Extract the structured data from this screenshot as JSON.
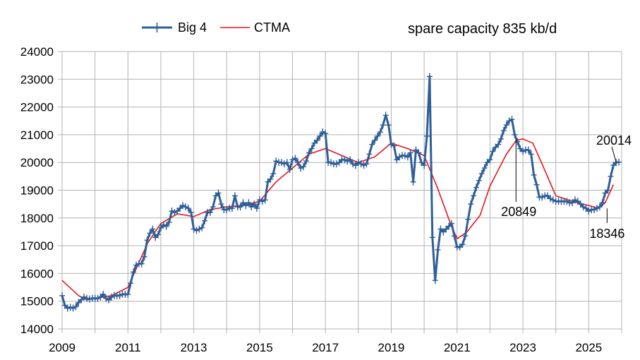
{
  "chart_data": {
    "type": "line",
    "title": "spare capacity 835 kb/d",
    "xlabel": "",
    "ylabel": "",
    "xlim": [
      2009,
      2026
    ],
    "ylim": [
      14000,
      24000
    ],
    "x_ticks": [
      "2009",
      "2011",
      "2013",
      "2015",
      "2017",
      "2019",
      "2021",
      "2023",
      "2025"
    ],
    "y_ticks": [
      "14000",
      "15000",
      "16000",
      "17000",
      "18000",
      "19000",
      "20000",
      "21000",
      "22000",
      "23000",
      "24000"
    ],
    "grid": true,
    "legend_position": "top",
    "series": [
      {
        "name": "Big 4",
        "color": "#2f5f98",
        "marker": "plus",
        "start": "2009-01",
        "step": "monthly",
        "values": [
          15200,
          14850,
          14750,
          14780,
          14750,
          14800,
          14950,
          15050,
          15150,
          15100,
          15080,
          15100,
          15100,
          15100,
          15150,
          15250,
          15100,
          15050,
          15150,
          15200,
          15200,
          15200,
          15250,
          15250,
          15250,
          15650,
          16050,
          16300,
          16350,
          16350,
          16600,
          17200,
          17450,
          17600,
          17300,
          17400,
          17650,
          17750,
          17700,
          17850,
          18250,
          18200,
          18250,
          18350,
          18450,
          18400,
          18350,
          18200,
          17600,
          17550,
          17600,
          17650,
          17900,
          18200,
          18200,
          18400,
          18800,
          18900,
          18500,
          18300,
          18300,
          18350,
          18350,
          18800,
          18400,
          18400,
          18550,
          18450,
          18550,
          18400,
          18500,
          18350,
          18650,
          18600,
          18650,
          19300,
          19400,
          19600,
          20050,
          20000,
          20000,
          19950,
          20000,
          19750,
          20100,
          20150,
          20000,
          19800,
          19850,
          20050,
          20350,
          20500,
          20700,
          20800,
          20950,
          21100,
          21050,
          20000,
          20000,
          19950,
          19950,
          20000,
          20100,
          20100,
          20050,
          20100,
          19950,
          19900,
          20000,
          19950,
          19900,
          19950,
          20300,
          20650,
          20800,
          20950,
          21100,
          21350,
          21700,
          21350,
          20650,
          20600,
          20100,
          20200,
          20250,
          20250,
          20200,
          20350,
          19300,
          20450,
          20350,
          20000,
          19900,
          20950,
          23100,
          17300,
          15750,
          16850,
          17600,
          17500,
          17600,
          17700,
          17800,
          17350,
          16950,
          16950,
          17050,
          17350,
          17950,
          18500,
          18800,
          19100,
          19350,
          19600,
          19800,
          20000,
          20100,
          20400,
          20550,
          20650,
          20850,
          21150,
          21350,
          21500,
          21550,
          21000,
          20750,
          20500,
          20400,
          20450,
          20450,
          20300,
          19550,
          19200,
          18750,
          18750,
          18800,
          18800,
          18700,
          18650,
          18600,
          18600,
          18600,
          18600,
          18600,
          18550,
          18550,
          18650,
          18600,
          18500,
          18400,
          18350,
          18250,
          18300,
          18300,
          18350,
          18400,
          18550,
          18900,
          19000,
          19500,
          19900,
          20000,
          20014
        ]
      },
      {
        "name": "CTMA",
        "color": "#e8151a",
        "x": [
          2009.0,
          2009.5,
          2009.75,
          2010.0,
          2010.5,
          2011.0,
          2011.3,
          2011.6,
          2012.0,
          2012.5,
          2013.0,
          2013.5,
          2014.0,
          2014.5,
          2015.0,
          2015.5,
          2016.0,
          2016.5,
          2017.0,
          2017.5,
          2018.0,
          2018.5,
          2019.0,
          2019.5,
          2020.0,
          2020.4,
          2020.8,
          2021.0,
          2021.3,
          2021.7,
          2022.0,
          2022.5,
          2022.8,
          2023.0,
          2023.3,
          2023.6,
          2024.0,
          2024.5,
          2025.0,
          2025.3,
          2025.5,
          2025.75
        ],
        "values": [
          15750,
          15200,
          15050,
          15100,
          15200,
          15500,
          16300,
          17100,
          17800,
          18150,
          18050,
          18300,
          18400,
          18450,
          18600,
          19300,
          19800,
          20300,
          20500,
          20250,
          20000,
          20200,
          20700,
          20500,
          20250,
          19100,
          17800,
          17250,
          17500,
          18100,
          19150,
          20300,
          20800,
          20849,
          20700,
          19900,
          18800,
          18600,
          18450,
          18346,
          18550,
          19200
        ]
      }
    ],
    "annotations": [
      {
        "label": "20849",
        "x": 2022.79,
        "y": 20849
      },
      {
        "label": "18346",
        "x": 2025.3,
        "y": 18346
      },
      {
        "label": "20014",
        "x": 2025.83,
        "y": 20014
      }
    ]
  }
}
